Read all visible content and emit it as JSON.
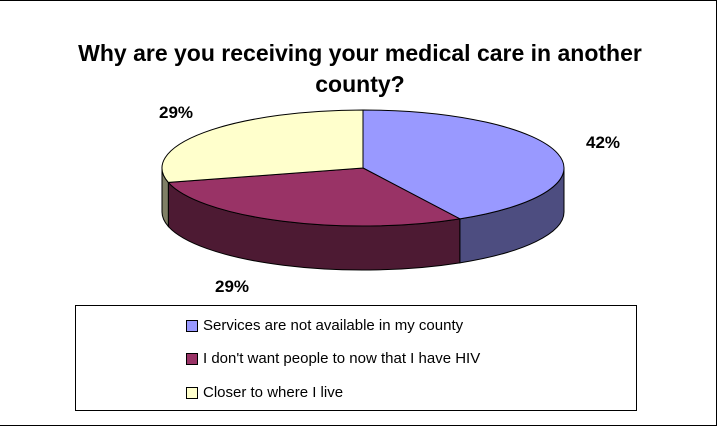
{
  "chart_data": {
    "type": "pie",
    "title": "Why are you receiving your medical care in another county?",
    "slices": [
      {
        "label": "Services are not available in my county",
        "value": 42,
        "display": "42%",
        "color": "#9999ff",
        "side_color": "#4d4d80"
      },
      {
        "label": "I don't want people to now that I have HIV",
        "value": 29,
        "display": "29%",
        "color": "#993366",
        "side_color": "#4d1a33"
      },
      {
        "label": "Closer to where I live",
        "value": 29,
        "display": "29%",
        "color": "#ffffcc",
        "side_color": "#808066"
      }
    ],
    "legend_position": "bottom",
    "style": "3d"
  }
}
